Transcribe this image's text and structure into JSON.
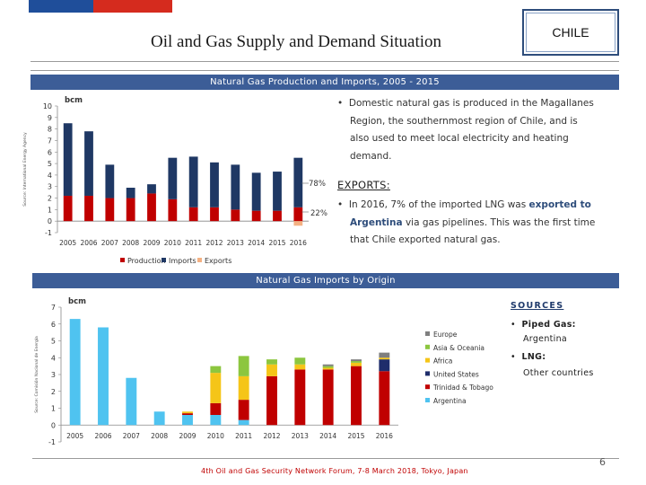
{
  "title": "Oil and Gas Supply and Demand Situation",
  "country_label": "CHILE",
  "colors": {
    "banner": "#3c5d97",
    "dark_blue": "#1f3864",
    "red": "#c00000",
    "orange": "#f4b183"
  },
  "section1": {
    "banner": "Natural Gas Production and Imports, 2005 - 2015",
    "bullet1_lines": [
      "Domestic natural gas is produced in the Magallanes",
      "Region, the southernmost region of Chile, and is",
      "also used to meet local electricity and heating",
      "demand."
    ],
    "exports_heading": "EXPORTS:",
    "exports_part1": "In 2016, 7% of the imported LNG was ",
    "exports_hl1": "exported to",
    "exports_hl2": "Argentina",
    "exports_part2": " via gas pipelines. This was the first time",
    "exports_line3": "that Chile exported natural gas."
  },
  "section2": {
    "banner": "Natural Gas Imports by Origin",
    "sources_heading": "SOURCES",
    "pipe_label": "Piped Gas:",
    "pipe_value": "Argentina",
    "lng_label": "LNG:",
    "lng_value": "Other countries"
  },
  "footer": {
    "text": "4th Oil and Gas Security Network Forum, 7-8 March 2018, Tokyo, Japan",
    "page": "6"
  },
  "chart_data": [
    {
      "type": "bar",
      "title": "Natural Gas Production and Imports, 2005 - 2015",
      "ylabel": "bcm",
      "side_label": "Source: International Energy Agency",
      "ylim": [
        -1,
        10
      ],
      "yticks": [
        "10",
        "9",
        "8",
        "7",
        "6",
        "5",
        "4",
        "3",
        "2",
        "1",
        "0",
        "-1"
      ],
      "categories": [
        "2005",
        "2006",
        "2007",
        "2008",
        "2009",
        "2010",
        "2011",
        "2012",
        "2013",
        "2014",
        "2015",
        "2016"
      ],
      "series": [
        {
          "name": "Production",
          "color": "#c00000",
          "values": [
            2.2,
            2.2,
            2.0,
            2.0,
            2.4,
            1.9,
            1.2,
            1.2,
            1.0,
            0.9,
            0.9,
            1.2
          ]
        },
        {
          "name": "Imports",
          "color": "#1f3864",
          "values": [
            6.3,
            5.6,
            2.9,
            0.9,
            0.8,
            3.6,
            4.4,
            3.9,
            3.9,
            3.3,
            3.4,
            4.3
          ]
        },
        {
          "name": "Exports",
          "color": "#f4b183",
          "values": [
            0,
            0,
            0,
            0,
            0,
            0,
            0,
            0,
            0,
            0,
            0,
            -0.4
          ]
        }
      ],
      "legend": [
        "Production",
        "Imports",
        "Exports"
      ],
      "annotations": [
        "78%",
        "22%"
      ]
    },
    {
      "type": "bar",
      "title": "Natural Gas Imports by Origin",
      "ylabel": "bcm",
      "side_label": "Source: Comisión Nacional de Energía",
      "ylim": [
        -1,
        7
      ],
      "yticks": [
        "7",
        "6",
        "5",
        "4",
        "3",
        "2",
        "1",
        "0",
        "-1"
      ],
      "categories": [
        "2005",
        "2006",
        "2007",
        "2008",
        "2009",
        "2010",
        "2011",
        "2012",
        "2013",
        "2014",
        "2015",
        "2016"
      ],
      "series": [
        {
          "name": "Argentina",
          "color": "#4fc3f0",
          "values": [
            6.3,
            5.8,
            2.8,
            0.8,
            0.6,
            0.6,
            0.3,
            0,
            0,
            0,
            0,
            0
          ]
        },
        {
          "name": "Trinidad & Tobago",
          "color": "#c00000",
          "values": [
            0,
            0,
            0,
            0,
            0.1,
            0.7,
            1.2,
            2.9,
            3.3,
            3.3,
            3.5,
            3.2
          ]
        },
        {
          "name": "United States",
          "color": "#1f2d6b",
          "values": [
            0,
            0,
            0,
            0,
            0,
            0,
            0,
            0,
            0,
            0,
            0,
            0.7
          ]
        },
        {
          "name": "Africa",
          "color": "#f5c518",
          "values": [
            0,
            0,
            0,
            0,
            0.1,
            1.8,
            1.4,
            0.7,
            0.3,
            0.1,
            0.2,
            0.1
          ]
        },
        {
          "name": "Asia & Oceania",
          "color": "#8cc63f",
          "values": [
            0,
            0,
            0,
            0,
            0,
            0.4,
            1.2,
            0.3,
            0.4,
            0.1,
            0.1,
            0
          ]
        },
        {
          "name": "Europe",
          "color": "#7f7f7f",
          "values": [
            0,
            0,
            0,
            0,
            0,
            0,
            0,
            0,
            0,
            0.1,
            0.1,
            0.3
          ]
        }
      ],
      "legend": [
        "Europe",
        "Asia & Oceania",
        "Africa",
        "United States",
        "Trinidad & Tobago",
        "Argentina"
      ]
    }
  ]
}
